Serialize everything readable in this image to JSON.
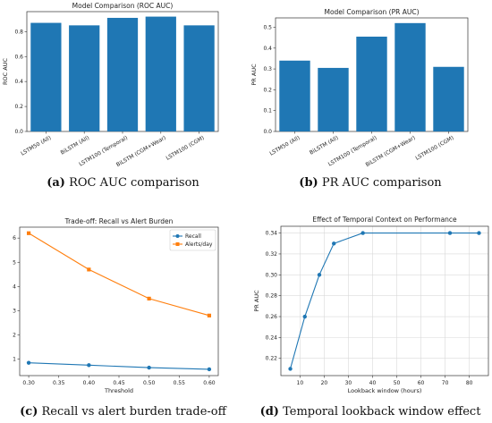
{
  "colors": {
    "blue": "#1f77b4",
    "orange": "#ff7f0e"
  },
  "captions": [
    {
      "tag": "(a)",
      "text": " ROC AUC comparison"
    },
    {
      "tag": "(b)",
      "text": " PR AUC comparison"
    },
    {
      "tag": "(c)",
      "text": " Recall vs alert burden trade-off"
    },
    {
      "tag": "(d)",
      "text": " Temporal lookback window effect"
    }
  ],
  "chart_data": [
    {
      "type": "bar",
      "title": "Model Comparison (ROC AUC)",
      "xlabel": "",
      "ylabel": "ROC AUC",
      "categories": [
        "LSTM50 (All)",
        "BiLSTM (All)",
        "LSTM100 (Temporal)",
        "BiLSTM (CGM+Wear)",
        "LSTM100 (CGM)"
      ],
      "values": [
        0.87,
        0.85,
        0.91,
        0.92,
        0.85
      ],
      "ylim": [
        0,
        0.96
      ],
      "yticks": [
        0.0,
        0.2,
        0.4,
        0.6,
        0.8
      ],
      "grid": false
    },
    {
      "type": "bar",
      "title": "Model Comparison (PR AUC)",
      "xlabel": "",
      "ylabel": "PR AUC",
      "categories": [
        "LSTM50 (All)",
        "BiLSTM (All)",
        "LSTM100 (Temporal)",
        "BiLSTM (CGM+Wear)",
        "LSTM100 (CGM)"
      ],
      "values": [
        0.34,
        0.305,
        0.455,
        0.52,
        0.31
      ],
      "ylim": [
        0,
        0.545
      ],
      "yticks": [
        0.0,
        0.1,
        0.2,
        0.3,
        0.4,
        0.5
      ],
      "grid": false
    },
    {
      "type": "line",
      "title": "Trade-off: Recall vs Alert Burden",
      "xlabel": "Threshold",
      "ylabel": "",
      "x": [
        0.3,
        0.4,
        0.5,
        0.6
      ],
      "series": [
        {
          "name": "Recall",
          "values": [
            0.85,
            0.75,
            0.65,
            0.58
          ]
        },
        {
          "name": "Alerts/day",
          "values": [
            6.2,
            4.7,
            3.5,
            2.8
          ]
        }
      ],
      "xlim": [
        0.285,
        0.615
      ],
      "ylim": [
        0.32,
        6.45
      ],
      "xticks": [
        "0.30",
        "0.35",
        "0.40",
        "0.45",
        "0.50",
        "0.55",
        "0.60"
      ],
      "yticks": [
        1,
        2,
        3,
        4,
        5,
        6
      ],
      "legend": "top-right",
      "grid": false
    },
    {
      "type": "line",
      "title": "Effect of Temporal Context on Performance",
      "xlabel": "Lookback window (hours)",
      "ylabel": "PR AUC",
      "x": [
        6,
        12,
        18,
        24,
        36,
        72,
        84
      ],
      "series": [
        {
          "name": "",
          "values": [
            0.21,
            0.26,
            0.3,
            0.33,
            0.34,
            0.34,
            0.34
          ]
        }
      ],
      "xlim": [
        2.1,
        87.9
      ],
      "ylim": [
        0.2035,
        0.3465
      ],
      "xticks": [
        10,
        20,
        30,
        40,
        50,
        60,
        70,
        80
      ],
      "yticks": [
        "0.22",
        "0.24",
        "0.26",
        "0.28",
        "0.30",
        "0.32",
        "0.34"
      ],
      "grid": true
    }
  ]
}
